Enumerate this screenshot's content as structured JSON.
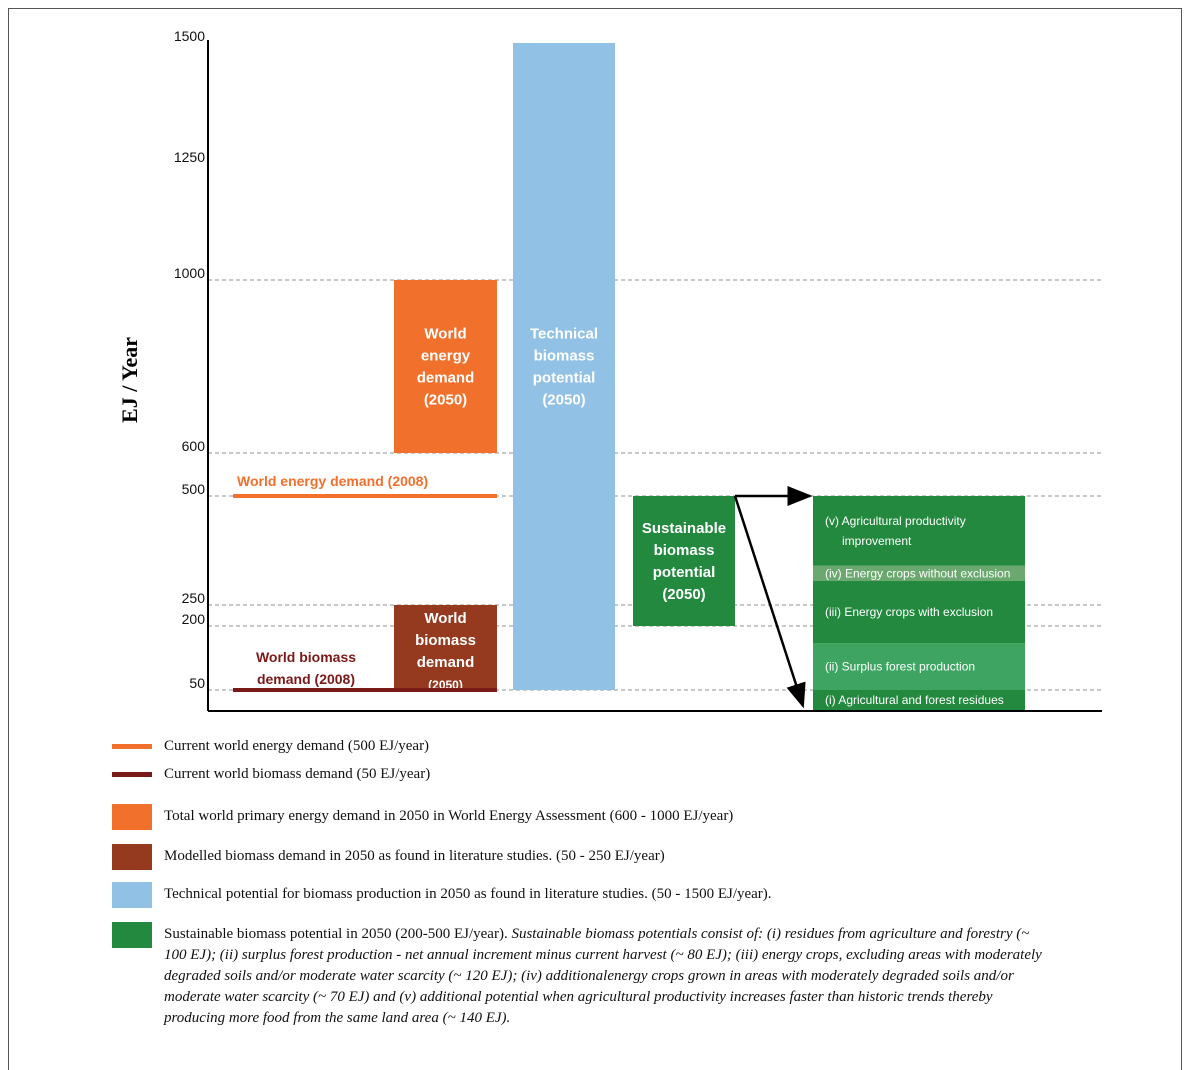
{
  "chart_data": {
    "type": "bar",
    "ylabel": "EJ / Year",
    "y_ticks": [
      50,
      200,
      250,
      500,
      600,
      1000,
      1250,
      1500
    ],
    "ylim": [
      0,
      1550
    ],
    "grid_lines": [
      50,
      200,
      250,
      500,
      600,
      1000
    ],
    "bars": [
      {
        "id": "world-energy-demand-2050",
        "label": [
          "World",
          "energy",
          "demand",
          "(2050)"
        ],
        "low": 600,
        "high": 1000,
        "color": "#f0702c"
      },
      {
        "id": "world-biomass-demand-2050",
        "label": [
          "World",
          "biomass",
          "demand",
          "(2050)"
        ],
        "low": 50,
        "high": 250,
        "color": "#963a1f"
      },
      {
        "id": "technical-biomass-potential-2050",
        "label": [
          "Technical",
          "biomass",
          "potential",
          "(2050)"
        ],
        "low": 50,
        "high": 1500,
        "color": "#92c1e6"
      },
      {
        "id": "sustainable-biomass-potential-2050",
        "label": [
          "Sustainable",
          "biomass",
          "potential",
          "(2050)"
        ],
        "low": 200,
        "high": 500,
        "color": "#22893f"
      }
    ],
    "lines": [
      {
        "id": "world-energy-demand-2008",
        "label": "World energy demand (2008)",
        "value": 500,
        "color": "#f0702c"
      },
      {
        "id": "world-biomass-demand-2008",
        "label": [
          "World biomass",
          "demand (2008)"
        ],
        "value": 50,
        "color": "#7a1a18"
      }
    ],
    "breakdown": [
      {
        "label": "(i) Agricultural and  forest residues",
        "value": 100,
        "color": "#22893f"
      },
      {
        "label": "(ii) Surplus forest production",
        "value": 80,
        "color": "#3da561"
      },
      {
        "label": "(iii) Energy crops with exclusion",
        "value": 120,
        "color": "#22893f"
      },
      {
        "label": "(iv) Energy crops without exclusion",
        "value": 70,
        "color": "#6aa870"
      },
      {
        "label": [
          "(v) Agricultural productivity",
          "improvement"
        ],
        "value": 140,
        "color": "#22893f"
      }
    ]
  },
  "legend": [
    {
      "kind": "line",
      "color": "#f0702c",
      "text": "Current world energy demand (500 EJ/year)"
    },
    {
      "kind": "line",
      "color": "#7a1a18",
      "text": "Current world biomass demand (50 EJ/year)"
    },
    {
      "kind": "box",
      "color": "#f0702c",
      "text": "Total world primary energy demand in 2050 in World Energy Assessment (600 - 1000 EJ/year)"
    },
    {
      "kind": "box",
      "color": "#963a1f",
      "text": "Modelled biomass demand in 2050 as found in literature studies. (50 - 250 EJ/year)"
    },
    {
      "kind": "box",
      "color": "#92c1e6",
      "text": "Technical potential for biomass production in 2050 as found in literature studies. (50 - 1500 EJ/year)."
    },
    {
      "kind": "box",
      "color": "#22893f",
      "text": "Sustainable biomass potential in 2050 (200-500 EJ/year). ",
      "italic": "Sustainable biomass potentials consist of: (i) residues from agriculture and forestry (~ 100 EJ); (ii) surplus forest production - net annual increment minus current harvest (~ 80 EJ); (iii) energy crops, excluding areas with moderately degraded soils and/or moderate water scarcity (~ 120 EJ); (iv) additionalenergy crops grown in areas with moderately degraded soils and/or moderate water scarcity (~ 70 EJ) and (v) additional potential when agricultural productivity increases faster than historic trends thereby producing more food from the same land area (~ 140 EJ)."
    }
  ]
}
